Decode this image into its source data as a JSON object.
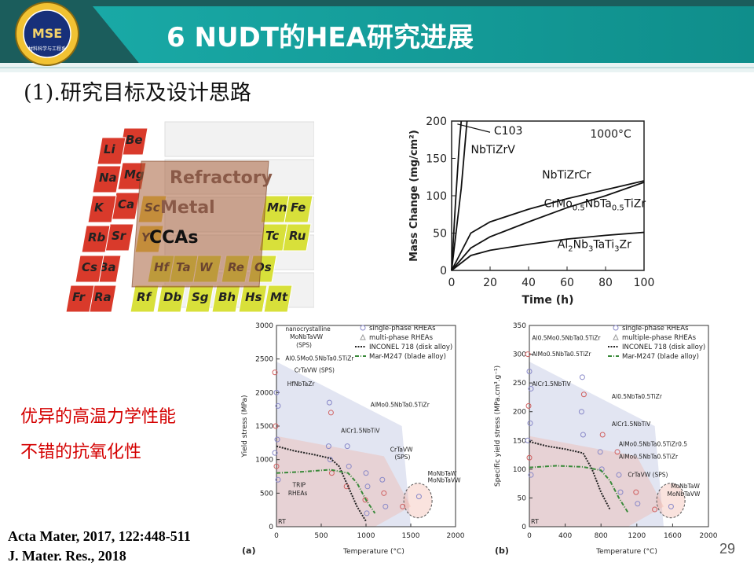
{
  "slide": {
    "title": "6 NUDT的HEA研究进展",
    "subtitle": "(1).研究目标及设计思路",
    "logo_text": "MSE",
    "logo_subtext": "材料科学与工程系",
    "page_number": "29",
    "colors": {
      "header_dark": "#1b5d5c",
      "header_teal": "#13a3a0",
      "highlight_red": "#d40000"
    }
  },
  "periodic_table": {
    "overlay_lines": [
      "Refractory",
      "Metal",
      "CCAs"
    ],
    "elements": [
      {
        "symbol": "Be",
        "color": "#d93a2b"
      },
      {
        "symbol": "Li",
        "color": "#d93a2b"
      },
      {
        "symbol": "Mg",
        "color": "#d93a2b"
      },
      {
        "symbol": "Na",
        "color": "#d93a2b"
      },
      {
        "symbol": "Ca",
        "color": "#d93a2b"
      },
      {
        "symbol": "K",
        "color": "#d93a2b"
      },
      {
        "symbol": "Sc",
        "color": "#e6c43a"
      },
      {
        "symbol": "Sr",
        "color": "#d93a2b"
      },
      {
        "symbol": "Rb",
        "color": "#d93a2b"
      },
      {
        "symbol": "Y",
        "color": "#e6c43a"
      },
      {
        "symbol": "Ba",
        "color": "#d93a2b"
      },
      {
        "symbol": "Cs",
        "color": "#d93a2b"
      },
      {
        "symbol": "Ra",
        "color": "#d93a2b"
      },
      {
        "symbol": "Fr",
        "color": "#d93a2b"
      },
      {
        "symbol": "Mn",
        "color": "#d8e03a"
      },
      {
        "symbol": "Fe",
        "color": "#d8e03a"
      },
      {
        "symbol": "Tc",
        "color": "#d8e03a"
      },
      {
        "symbol": "Ru",
        "color": "#d8e03a"
      },
      {
        "symbol": "Hf",
        "color": "#d8e03a"
      },
      {
        "symbol": "Ta",
        "color": "#d8e03a"
      },
      {
        "symbol": "W",
        "color": "#d8e03a"
      },
      {
        "symbol": "Re",
        "color": "#d8e03a"
      },
      {
        "symbol": "Os",
        "color": "#d8e03a"
      },
      {
        "symbol": "Rf",
        "color": "#d8e03a"
      },
      {
        "symbol": "Db",
        "color": "#d8e03a"
      },
      {
        "symbol": "Sg",
        "color": "#d8e03a"
      },
      {
        "symbol": "Bh",
        "color": "#d8e03a"
      },
      {
        "symbol": "Hs",
        "color": "#d8e03a"
      },
      {
        "symbol": "Mt",
        "color": "#d8e03a"
      }
    ]
  },
  "mass_chart": {
    "type": "line",
    "xlabel": "Time (h)",
    "ylabel": "Mass Change (mg/cm²)",
    "xlim": [
      0,
      100
    ],
    "ylim": [
      0,
      200
    ],
    "xticks": [
      "0",
      "20",
      "40",
      "60",
      "80",
      "100"
    ],
    "yticks": [
      "0",
      "50",
      "100",
      "150",
      "200"
    ],
    "annotation": "1000°C",
    "series": [
      {
        "name": "C103",
        "x": [
          0,
          2,
          4,
          5
        ],
        "y": [
          0,
          90,
          170,
          200
        ]
      },
      {
        "name": "NbTiZrV",
        "x": [
          0,
          5,
          8
        ],
        "y": [
          0,
          110,
          200
        ]
      },
      {
        "name": "NbTiZrCr",
        "x": [
          0,
          10,
          20,
          40,
          60,
          80,
          100
        ],
        "y": [
          0,
          50,
          65,
          82,
          96,
          108,
          120
        ]
      },
      {
        "name": "CrMo0.5NbTa0.5TiZr",
        "x": [
          0,
          10,
          20,
          40,
          60,
          80,
          100
        ],
        "y": [
          0,
          30,
          45,
          65,
          84,
          100,
          118
        ]
      },
      {
        "name": "Al2Nb3TaTi3Zr",
        "x": [
          0,
          10,
          20,
          40,
          60,
          80,
          100
        ],
        "y": [
          0,
          20,
          27,
          35,
          42,
          47,
          51
        ]
      }
    ],
    "labels": [
      {
        "text": "C103",
        "x": 22,
        "y": 182
      },
      {
        "text": "NbTiZrV",
        "x": 10,
        "y": 157
      },
      {
        "text": "NbTiZrCr",
        "x": 47,
        "y": 123
      },
      {
        "text": "CrMo",
        "x": 48,
        "y": 85,
        "sub1": "0.5",
        "mid": "NbTa",
        "sub2": "0.5",
        "end": "TiZr"
      },
      {
        "text": "Al",
        "x": 55,
        "y": 30,
        "sub1": "2",
        "mid": "Nb",
        "sub2": "3",
        "end": "TaTi",
        "sub3": "3",
        "tail": "Zr"
      }
    ]
  },
  "highlights": [
    "优异的高温力学性能",
    "不错的抗氧化性"
  ],
  "references": [
    "Acta Mater, 2017, 122:448-511",
    "J. Mater. Res., 2018"
  ],
  "chart_data": [
    {
      "type": "scatter",
      "panel": "(a)",
      "xlabel": "Temperature (°C)",
      "ylabel": "Yield stress (MPa)",
      "xlim": [
        0,
        2000
      ],
      "ylim": [
        0,
        3000
      ],
      "xticks": [
        "0",
        "500",
        "1000",
        "1500",
        "2000"
      ],
      "yticks": [
        "0",
        "500",
        "1000",
        "1500",
        "2000",
        "2500",
        "3000"
      ],
      "corner_label": "RT",
      "legend": [
        "single-phase RHEAs",
        "multi-phase RHEAs",
        "INCONEL 718 (disk alloy)",
        "Mar-M247 (blade alloy)"
      ],
      "series": [
        {
          "name": "INCONEL 718 (disk alloy)",
          "x": [
            0,
            200,
            400,
            600,
            700,
            800,
            900,
            1000
          ],
          "y": [
            1200,
            1130,
            1080,
            1020,
            900,
            600,
            300,
            80
          ]
        },
        {
          "name": "Mar-M247 (blade alloy)",
          "x": [
            0,
            300,
            600,
            800,
            900,
            1000,
            1100
          ],
          "y": [
            800,
            820,
            850,
            800,
            650,
            400,
            200
          ]
        }
      ],
      "points": [
        {
          "x": 0,
          "y": 2300
        },
        {
          "x": 0,
          "y": 2000
        },
        {
          "x": 0,
          "y": 1800
        },
        {
          "x": 0,
          "y": 1500
        },
        {
          "x": 0,
          "y": 1300
        },
        {
          "x": 0,
          "y": 1100
        },
        {
          "x": 0,
          "y": 900
        },
        {
          "x": 0,
          "y": 700
        },
        {
          "x": 600,
          "y": 1850
        },
        {
          "x": 600,
          "y": 1700
        },
        {
          "x": 600,
          "y": 1200
        },
        {
          "x": 600,
          "y": 1000
        },
        {
          "x": 600,
          "y": 800
        },
        {
          "x": 800,
          "y": 1200
        },
        {
          "x": 800,
          "y": 900
        },
        {
          "x": 800,
          "y": 600
        },
        {
          "x": 1000,
          "y": 800
        },
        {
          "x": 1000,
          "y": 600
        },
        {
          "x": 1000,
          "y": 400
        },
        {
          "x": 1000,
          "y": 200
        },
        {
          "x": 1200,
          "y": 700
        },
        {
          "x": 1200,
          "y": 500
        },
        {
          "x": 1200,
          "y": 300
        },
        {
          "x": 1600,
          "y": 450
        },
        {
          "x": 1400,
          "y": 300
        }
      ],
      "annotations": [
        {
          "text": "nanocrystalline",
          "x": 100,
          "y": 2920
        },
        {
          "text": "MoNbTaVW",
          "x": 150,
          "y": 2800
        },
        {
          "text": "(SPS)",
          "x": 220,
          "y": 2680
        },
        {
          "text": "Al0.5Mo0.5NbTa0.5TiZr",
          "x": 100,
          "y": 2480
        },
        {
          "text": "CrTaVW (SPS)",
          "x": 200,
          "y": 2300
        },
        {
          "text": "HfNbTaZr",
          "x": 120,
          "y": 2100
        },
        {
          "text": "AlMo0.5NbTa0.5TiZr",
          "x": 1050,
          "y": 1790
        },
        {
          "text": "AlCr1.5NbTiV",
          "x": 720,
          "y": 1400
        },
        {
          "text": "CrTaVW",
          "x": 1270,
          "y": 1120
        },
        {
          "text": "(SPS)",
          "x": 1320,
          "y": 1010
        },
        {
          "text": "MoNbTaW",
          "x": 1690,
          "y": 760
        },
        {
          "text": "MoNbTaVW",
          "x": 1690,
          "y": 660
        },
        {
          "text": "TRIP",
          "x": 180,
          "y": 590
        },
        {
          "text": "RHEAs",
          "x": 130,
          "y": 470
        }
      ]
    },
    {
      "type": "scatter",
      "panel": "(b)",
      "xlabel": "Temperature (°C)",
      "ylabel": "Specific yield stress (MPa.cm³.g⁻¹)",
      "xlim": [
        0,
        2000
      ],
      "ylim": [
        0,
        350
      ],
      "xticks": [
        "0",
        "400",
        "800",
        "1200",
        "1600",
        "2000"
      ],
      "yticks": [
        "0",
        "50",
        "100",
        "150",
        "200",
        "250",
        "300",
        "350"
      ],
      "corner_label": "RT",
      "legend": [
        "single-phase RHEAs",
        "multiple-phase RHEAs",
        "INCONEL 718 (disk alloy)",
        "Mar-M247 (blade alloy)"
      ],
      "series": [
        {
          "name": "INCONEL 718 (disk alloy)",
          "x": [
            0,
            200,
            400,
            600,
            700,
            800,
            900
          ],
          "y": [
            148,
            140,
            135,
            128,
            100,
            60,
            30
          ]
        },
        {
          "name": "Mar-M247 (blade alloy)",
          "x": [
            0,
            300,
            600,
            800,
            900,
            1000,
            1100
          ],
          "y": [
            103,
            106,
            104,
            98,
            80,
            50,
            25
          ]
        }
      ],
      "points": [
        {
          "x": 0,
          "y": 300
        },
        {
          "x": 0,
          "y": 270
        },
        {
          "x": 0,
          "y": 240
        },
        {
          "x": 0,
          "y": 210
        },
        {
          "x": 0,
          "y": 180
        },
        {
          "x": 0,
          "y": 150
        },
        {
          "x": 0,
          "y": 120
        },
        {
          "x": 0,
          "y": 90
        },
        {
          "x": 600,
          "y": 260
        },
        {
          "x": 600,
          "y": 230
        },
        {
          "x": 600,
          "y": 200
        },
        {
          "x": 600,
          "y": 160
        },
        {
          "x": 800,
          "y": 160
        },
        {
          "x": 800,
          "y": 130
        },
        {
          "x": 800,
          "y": 100
        },
        {
          "x": 1000,
          "y": 130
        },
        {
          "x": 1000,
          "y": 90
        },
        {
          "x": 1000,
          "y": 60
        },
        {
          "x": 1200,
          "y": 60
        },
        {
          "x": 1200,
          "y": 40
        },
        {
          "x": 1600,
          "y": 35
        },
        {
          "x": 1400,
          "y": 30
        }
      ],
      "annotations": [
        {
          "text": "Al0.5Mo0.5NbTa0.5TiZr",
          "x": 30,
          "y": 325
        },
        {
          "text": "AlMo0.5NbTa0.5TiZr",
          "x": 30,
          "y": 297
        },
        {
          "text": "AlCr1.5NbTiV",
          "x": 30,
          "y": 245
        },
        {
          "text": "Al0.5NbTa0.5TiZr",
          "x": 920,
          "y": 223
        },
        {
          "text": "AlCr1.5NbTiV",
          "x": 920,
          "y": 175
        },
        {
          "text": "AlMo0.5NbTa0.5TiZr0.5",
          "x": 1000,
          "y": 140
        },
        {
          "text": "AlMo0.5NbTa0.5TiZr",
          "x": 1000,
          "y": 118
        },
        {
          "text": "CrTaVW (SPS)",
          "x": 1100,
          "y": 87
        },
        {
          "text": "MoNbTaW",
          "x": 1580,
          "y": 67
        },
        {
          "text": "MoNbTaVW",
          "x": 1540,
          "y": 53
        }
      ]
    }
  ]
}
